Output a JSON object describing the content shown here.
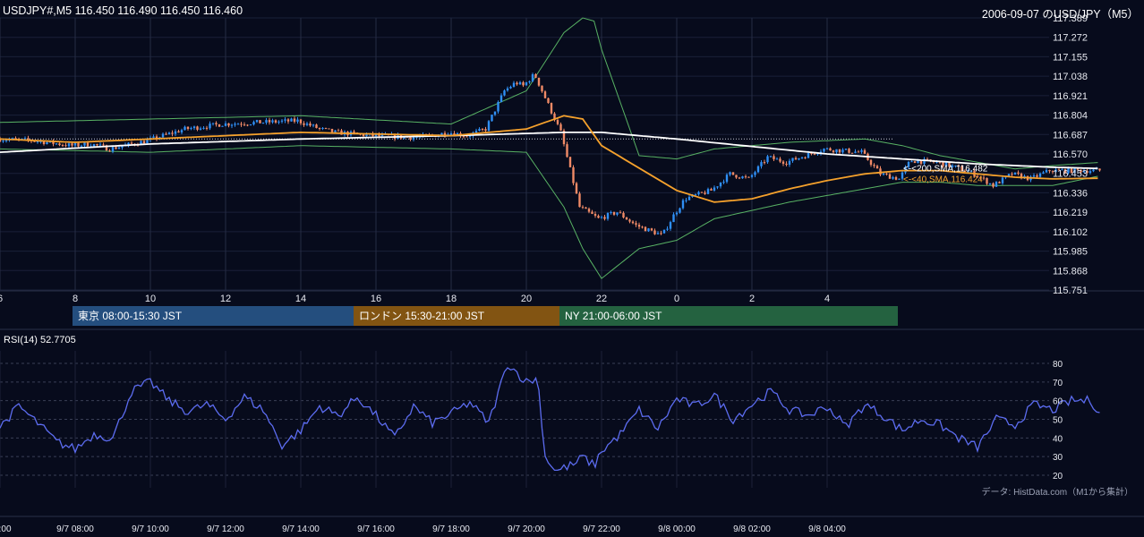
{
  "header": {
    "symbol_info": "USDJPY#,M5 116.450 116.490 116.450 116.460",
    "chart_title": "2006-09-07 のUSD/JPY（M5）"
  },
  "sessions": [
    {
      "label": "東京 08:00-15:30 JST",
      "color": "#244e7e"
    },
    {
      "label": "ロンドン 15:30-21:00 JST",
      "color": "#825412"
    },
    {
      "label": "NY 21:00-06:00 JST",
      "color": "#246240"
    }
  ],
  "rsi_panel": {
    "label": "RSI(14) 52.7705"
  },
  "source_note": "データ: HistData.com（M1から集計）",
  "colors": {
    "background": "#070b1c",
    "bull_candle": "#2f8ff5",
    "bear_candle": "#f08a66",
    "sma200": "#ffffff",
    "sma40": "#f5a12c",
    "bollinger": "#58b264",
    "rsi_line": "#5c6cf0"
  },
  "chart_data": [
    {
      "type": "candlestick",
      "title": "",
      "y_ticks": [
        "117.389",
        "117.272",
        "117.155",
        "117.038",
        "116.921",
        "116.804",
        "116.687",
        "116.570",
        "116.453",
        "116.336",
        "116.219",
        "116.102",
        "115.985",
        "115.868",
        "115.751"
      ],
      "ylim": [
        115.751,
        117.389
      ],
      "x_ticks": [
        "6",
        "8",
        "10",
        "12",
        "14",
        "16",
        "18",
        "20",
        "22",
        "0",
        "2",
        "4"
      ],
      "reference_line": 116.66,
      "overlays": [
        {
          "label": "<-<200,SMA,116.482",
          "value": 116.482
        },
        {
          "label": "<-<40,SMA,116.424",
          "value": 116.424
        }
      ],
      "price_anchors": {
        "hours": [
          0,
          1,
          2,
          2.5,
          3,
          4,
          5,
          6,
          7,
          8,
          8.6,
          9,
          10,
          11,
          11.6,
          12,
          12.5,
          13,
          13.5,
          13.8,
          14,
          14.3,
          15,
          15.5,
          16,
          16.5,
          17,
          17.7,
          18,
          18.3,
          19,
          19.5,
          20,
          20.5,
          21,
          22,
          23,
          23.5,
          24,
          24.3,
          25,
          25.5,
          26,
          26.5,
          27,
          27.5,
          28,
          29.3
        ],
        "prices": [
          116.66,
          116.65,
          116.62,
          116.63,
          116.6,
          116.65,
          116.72,
          116.75,
          116.76,
          116.77,
          116.72,
          116.7,
          116.68,
          116.67,
          116.68,
          116.7,
          116.68,
          116.72,
          116.95,
          117.0,
          116.98,
          117.05,
          116.7,
          116.25,
          116.18,
          116.22,
          116.14,
          116.08,
          116.2,
          116.3,
          116.35,
          116.45,
          116.42,
          116.55,
          116.52,
          116.6,
          116.58,
          116.45,
          116.42,
          116.53,
          116.52,
          116.49,
          116.45,
          116.38,
          116.45,
          116.42,
          116.47,
          116.47
        ]
      },
      "sma200_anchors": {
        "hours": [
          0,
          4,
          8,
          12,
          15,
          16,
          18,
          22,
          24,
          26,
          28,
          29.3
        ],
        "prices": [
          116.58,
          116.63,
          116.66,
          116.68,
          116.7,
          116.7,
          116.66,
          116.57,
          116.54,
          116.51,
          116.49,
          116.482
        ]
      },
      "sma40_anchors": {
        "hours": [
          0,
          2,
          4,
          8,
          12,
          14,
          15,
          15.5,
          16,
          18,
          19,
          20,
          21,
          22,
          23,
          24,
          25,
          26,
          27,
          28,
          29.3
        ],
        "prices": [
          116.66,
          116.64,
          116.66,
          116.7,
          116.68,
          116.72,
          116.8,
          116.78,
          116.62,
          116.35,
          116.28,
          116.3,
          116.36,
          116.41,
          116.45,
          116.47,
          116.47,
          116.45,
          116.43,
          116.42,
          116.424
        ]
      },
      "bollinger_upper_anchors": {
        "hours": [
          0,
          4,
          8,
          12,
          14,
          15,
          15.5,
          15.8,
          16,
          17,
          18,
          19,
          21,
          23,
          24,
          25,
          26,
          27,
          28,
          29.3
        ],
        "prices": [
          116.76,
          116.78,
          116.8,
          116.75,
          116.95,
          117.3,
          117.389,
          117.37,
          117.2,
          116.56,
          116.54,
          116.6,
          116.64,
          116.66,
          116.62,
          116.56,
          116.52,
          116.48,
          116.5,
          116.52
        ]
      },
      "bollinger_lower_anchors": {
        "hours": [
          0,
          4,
          8,
          12,
          14,
          15,
          15.5,
          16,
          17,
          18,
          19,
          21,
          23,
          24,
          25,
          26,
          27,
          28,
          29.3
        ],
        "prices": [
          116.6,
          116.58,
          116.62,
          116.6,
          116.58,
          116.25,
          116.0,
          115.82,
          116.0,
          116.05,
          116.18,
          116.28,
          116.36,
          116.4,
          116.4,
          116.38,
          116.38,
          116.38,
          116.44
        ]
      }
    },
    {
      "type": "line",
      "title": "",
      "series": [
        {
          "name": "RSI(14)"
        }
      ],
      "y_ticks": [
        "80",
        "70",
        "60",
        "50",
        "40",
        "30",
        "20"
      ],
      "ylim": [
        20,
        80
      ],
      "anchors": {
        "hours": [
          0,
          0.5,
          1,
          1.5,
          2,
          2.5,
          3,
          3.5,
          4,
          4.5,
          5,
          5.5,
          6,
          6.5,
          7,
          7.5,
          8,
          8.5,
          9,
          9.5,
          10,
          10.5,
          11,
          11.5,
          12,
          12.5,
          13,
          13.5,
          14,
          14.3,
          14.5,
          14.8,
          15,
          15.3,
          15.5,
          15.8,
          16,
          16.5,
          17,
          17.5,
          18,
          18.5,
          19,
          19.5,
          20,
          20.5,
          21,
          21.5,
          22,
          22.5,
          23,
          23.5,
          24,
          24.5,
          25,
          25.5,
          26,
          26.5,
          27,
          27.5,
          28,
          28.5,
          29,
          29.3
        ],
        "values": [
          46,
          57,
          48,
          38,
          34,
          42,
          40,
          65,
          70,
          60,
          54,
          58,
          50,
          62,
          55,
          36,
          44,
          57,
          52,
          62,
          52,
          40,
          57,
          48,
          53,
          59,
          48,
          80,
          70,
          72,
          30,
          22,
          24,
          26,
          30,
          25,
          33,
          42,
          55,
          45,
          61,
          57,
          63,
          50,
          58,
          65,
          55,
          52,
          57,
          46,
          58,
          52,
          44,
          50,
          47,
          40,
          35,
          50,
          47,
          58,
          55,
          60,
          60,
          53
        ]
      }
    }
  ]
}
